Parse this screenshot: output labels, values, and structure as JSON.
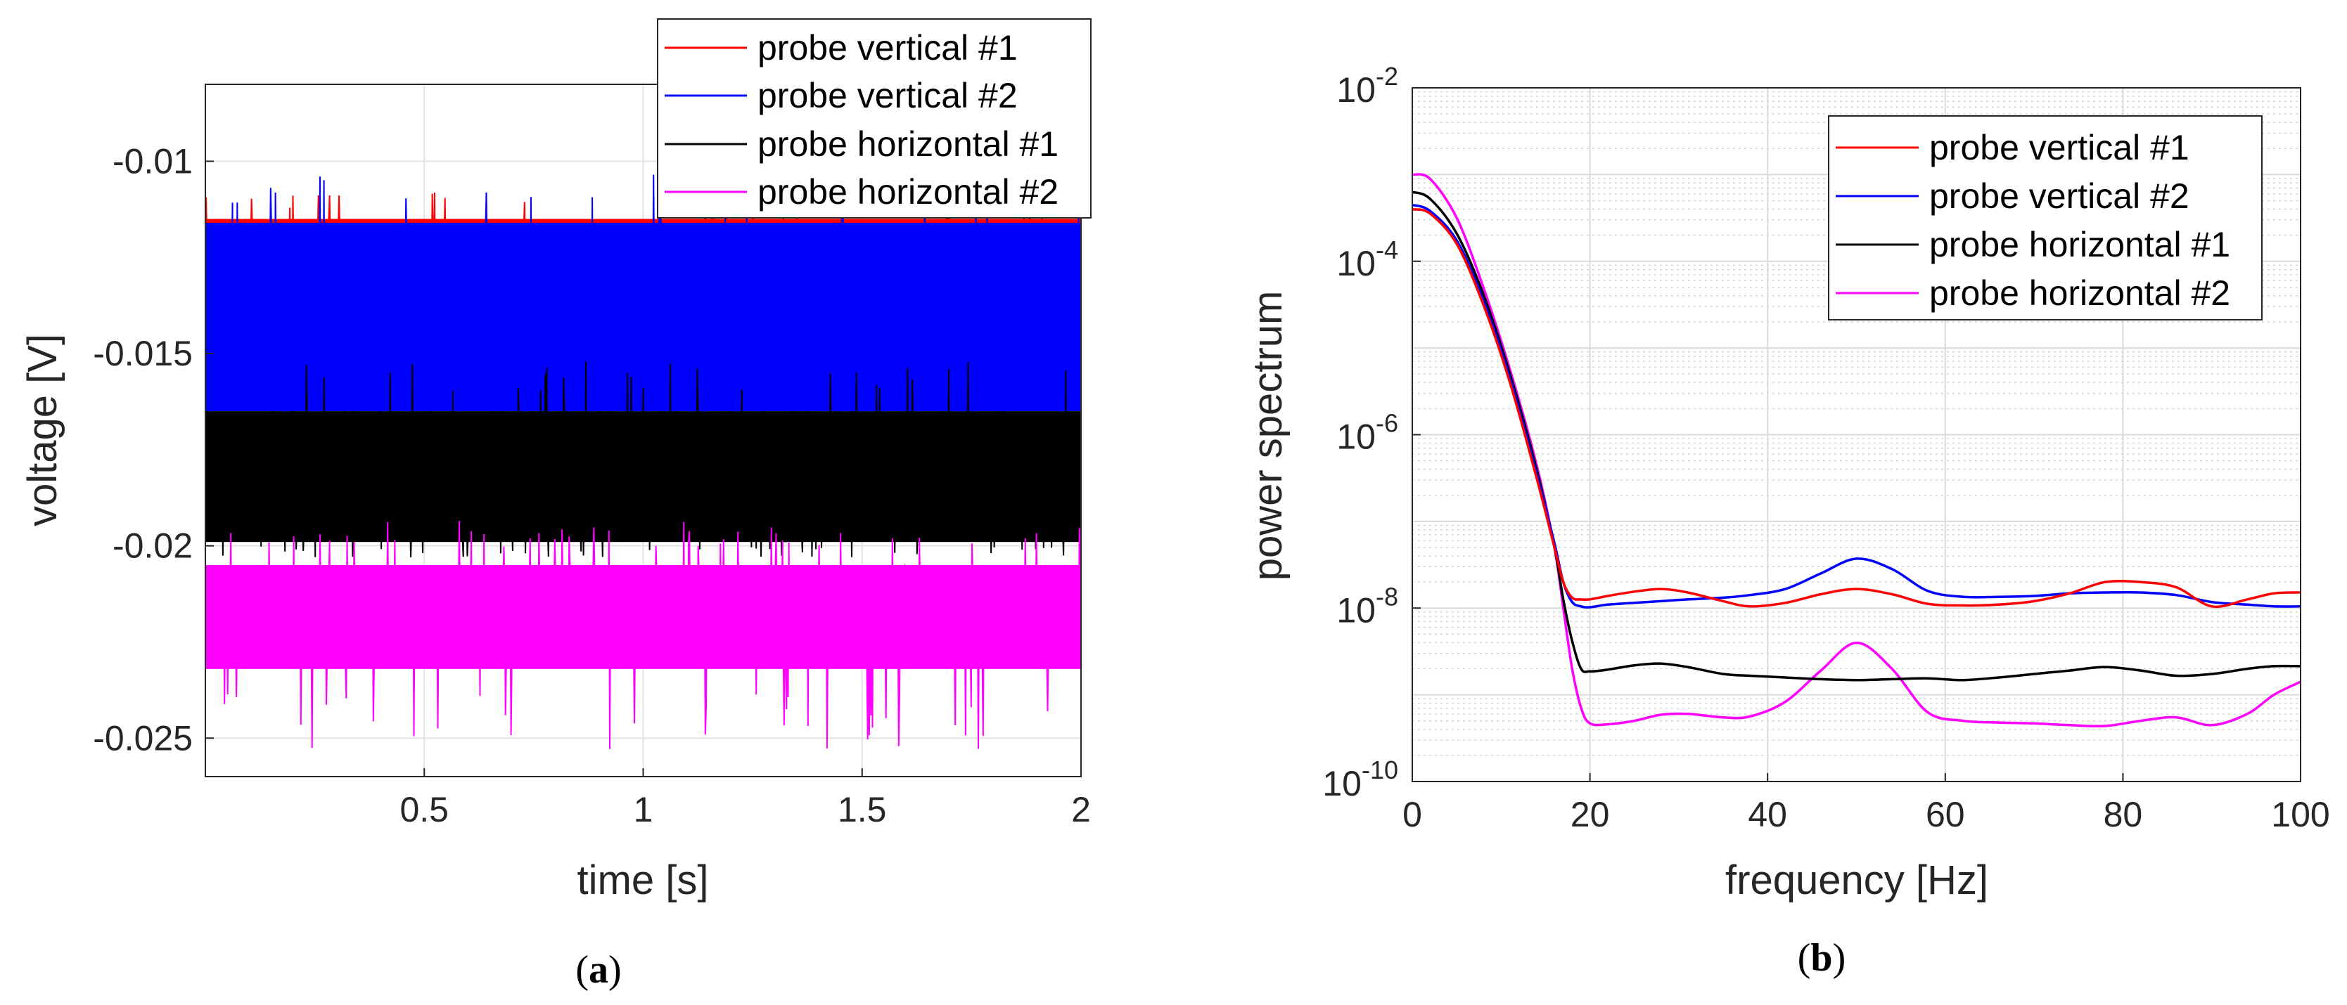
{
  "chart_data": [
    {
      "id": "a",
      "type": "line",
      "panel_label": {
        "open": "(",
        "letter": "a",
        "close": ")"
      },
      "xlabel": "time [s]",
      "ylabel": "voltage [V]",
      "xlim": [
        0,
        2
      ],
      "ylim": [
        -0.026,
        -0.008
      ],
      "xticks": [
        0.5,
        1,
        1.5,
        2
      ],
      "xtick_labels": [
        "0.5",
        "1",
        "1.5",
        "2"
      ],
      "yticks": [
        -0.01,
        -0.015,
        -0.02,
        -0.025
      ],
      "ytick_labels": [
        "-0.01",
        "-0.015",
        "-0.02",
        "-0.025"
      ],
      "grid": true,
      "legend_position": "top-right",
      "series": [
        {
          "name": "probe vertical #1",
          "color": "#ff0000",
          "band": [
            -0.0135,
            -0.0115
          ],
          "spikes_up": -0.0108,
          "spikes_down": -0.0142
        },
        {
          "name": "probe vertical #2",
          "color": "#0000ff",
          "band": [
            -0.0165,
            -0.0116
          ],
          "spikes_up": -0.0103,
          "spikes_down": -0.0173
        },
        {
          "name": "probe horizontal #1",
          "color": "#000000",
          "band": [
            -0.0199,
            -0.0165
          ],
          "spikes_up": -0.0152,
          "spikes_down": -0.0203
        },
        {
          "name": "probe horizontal #2",
          "color": "#ff00ff",
          "band": [
            -0.0232,
            -0.0205
          ],
          "spikes_up": -0.0193,
          "spikes_down": -0.0253
        }
      ]
    },
    {
      "id": "b",
      "type": "line",
      "panel_label": {
        "open": "(",
        "letter": "b",
        "close": ")"
      },
      "xlabel": "frequency [Hz]",
      "ylabel": "power spectrum",
      "yscale": "log",
      "xlim": [
        0,
        100
      ],
      "ylim_exp": [
        -10,
        -2
      ],
      "xticks": [
        0,
        20,
        40,
        60,
        80,
        100
      ],
      "xtick_labels": [
        "0",
        "20",
        "40",
        "60",
        "80",
        "100"
      ],
      "yticks": [
        {
          "base": "10",
          "exp": "-2"
        },
        {
          "base": "10",
          "exp": "-4"
        },
        {
          "base": "10",
          "exp": "-6"
        },
        {
          "base": "10",
          "exp": "-8"
        },
        {
          "base": "10",
          "exp": "-10"
        }
      ],
      "grid": true,
      "legend_position": "top-right",
      "x": [
        0,
        2,
        5,
        8,
        11,
        14,
        16,
        17,
        18,
        19,
        20,
        22,
        25,
        28,
        31,
        35,
        38,
        42,
        46,
        50,
        54,
        58,
        62,
        66,
        70,
        74,
        78,
        82,
        86,
        90,
        94,
        97,
        100
      ],
      "series": [
        {
          "name": "probe vertical #1",
          "color": "#ff0000",
          "log10_values": [
            -3.4,
            -3.45,
            -3.8,
            -4.5,
            -5.4,
            -6.5,
            -7.3,
            -7.7,
            -7.88,
            -7.9,
            -7.9,
            -7.86,
            -7.81,
            -7.78,
            -7.82,
            -7.92,
            -7.98,
            -7.94,
            -7.84,
            -7.78,
            -7.84,
            -7.95,
            -7.97,
            -7.96,
            -7.92,
            -7.83,
            -7.7,
            -7.7,
            -7.76,
            -7.98,
            -7.9,
            -7.83,
            -7.82
          ]
        },
        {
          "name": "probe vertical #2",
          "color": "#0000ff",
          "log10_values": [
            -3.35,
            -3.42,
            -3.76,
            -4.45,
            -5.35,
            -6.45,
            -7.25,
            -7.7,
            -7.93,
            -7.98,
            -7.99,
            -7.96,
            -7.94,
            -7.92,
            -7.9,
            -7.88,
            -7.85,
            -7.78,
            -7.6,
            -7.43,
            -7.55,
            -7.8,
            -7.87,
            -7.87,
            -7.86,
            -7.83,
            -7.82,
            -7.82,
            -7.85,
            -7.93,
            -7.96,
            -7.98,
            -7.98
          ]
        },
        {
          "name": "probe horizontal #1",
          "color": "#000000",
          "log10_values": [
            -3.2,
            -3.28,
            -3.68,
            -4.38,
            -5.3,
            -6.4,
            -7.3,
            -7.9,
            -8.38,
            -8.7,
            -8.73,
            -8.71,
            -8.66,
            -8.64,
            -8.68,
            -8.76,
            -8.78,
            -8.8,
            -8.82,
            -8.83,
            -8.82,
            -8.81,
            -8.83,
            -8.8,
            -8.76,
            -8.72,
            -8.68,
            -8.72,
            -8.78,
            -8.76,
            -8.7,
            -8.67,
            -8.67
          ]
        },
        {
          "name": "probe horizontal #2",
          "color": "#ff00ff",
          "log10_values": [
            -3.0,
            -3.05,
            -3.5,
            -4.3,
            -5.25,
            -6.35,
            -7.3,
            -8.0,
            -8.7,
            -9.15,
            -9.33,
            -9.34,
            -9.3,
            -9.23,
            -9.22,
            -9.26,
            -9.25,
            -9.08,
            -8.72,
            -8.4,
            -8.7,
            -9.2,
            -9.3,
            -9.32,
            -9.33,
            -9.35,
            -9.36,
            -9.3,
            -9.26,
            -9.35,
            -9.22,
            -9.0,
            -8.85
          ]
        }
      ]
    }
  ]
}
